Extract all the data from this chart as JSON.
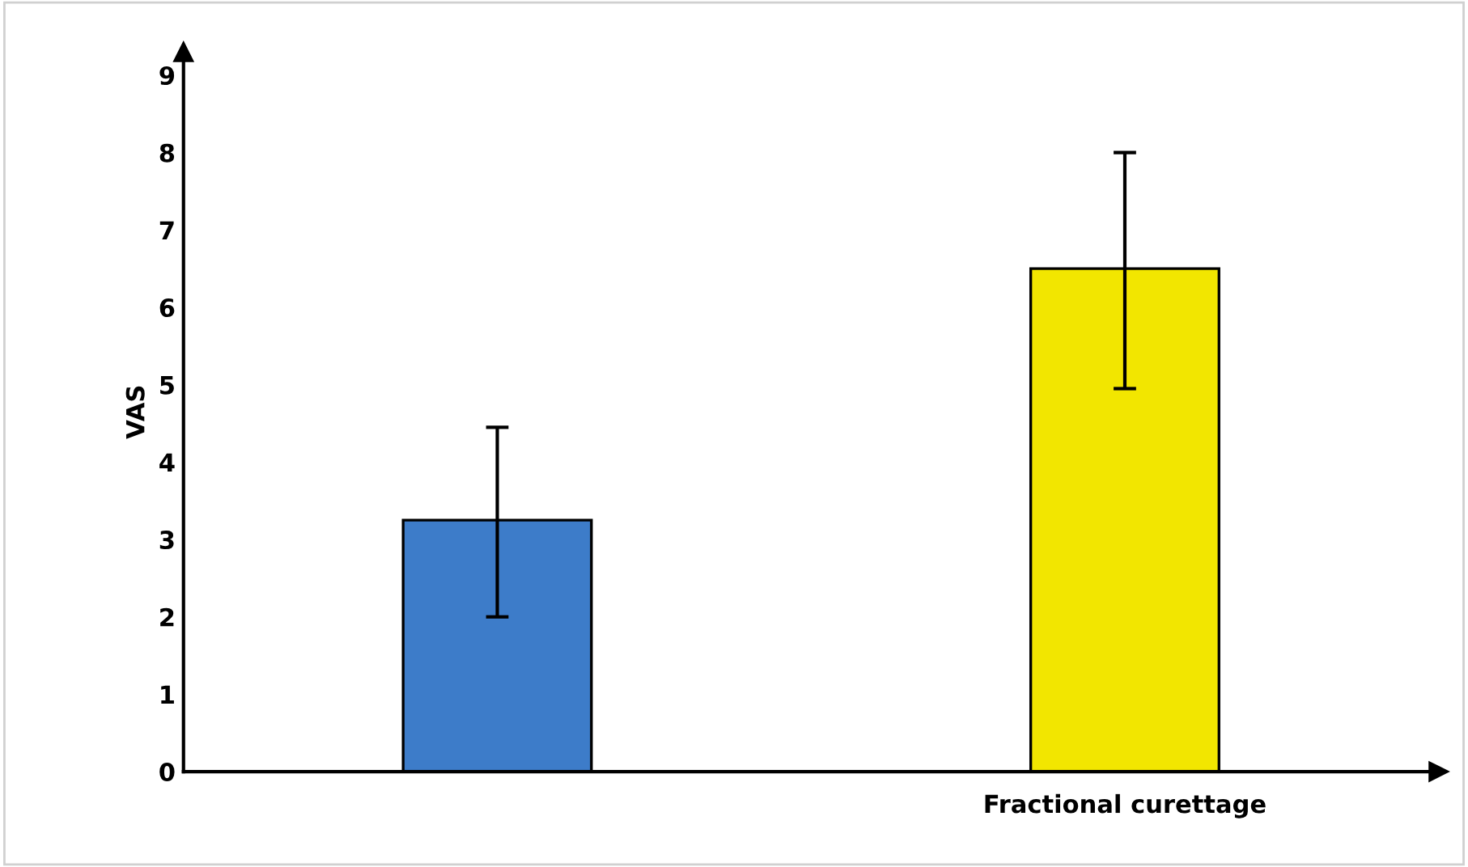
{
  "chart_data": {
    "type": "bar",
    "ylabel": "VAS",
    "categories": [
      null,
      "Fractional curettage"
    ],
    "values": [
      3.25,
      6.5
    ],
    "errors": [
      [
        2.0,
        4.45
      ],
      [
        4.95,
        8.0
      ]
    ],
    "colors": [
      "#3d7cc9",
      "#f2e600"
    ],
    "ylim": [
      0,
      9.3
    ],
    "yticks": [
      0,
      1,
      2,
      3,
      4,
      5,
      6,
      7,
      8,
      9
    ],
    "grid": false,
    "legend": false
  }
}
